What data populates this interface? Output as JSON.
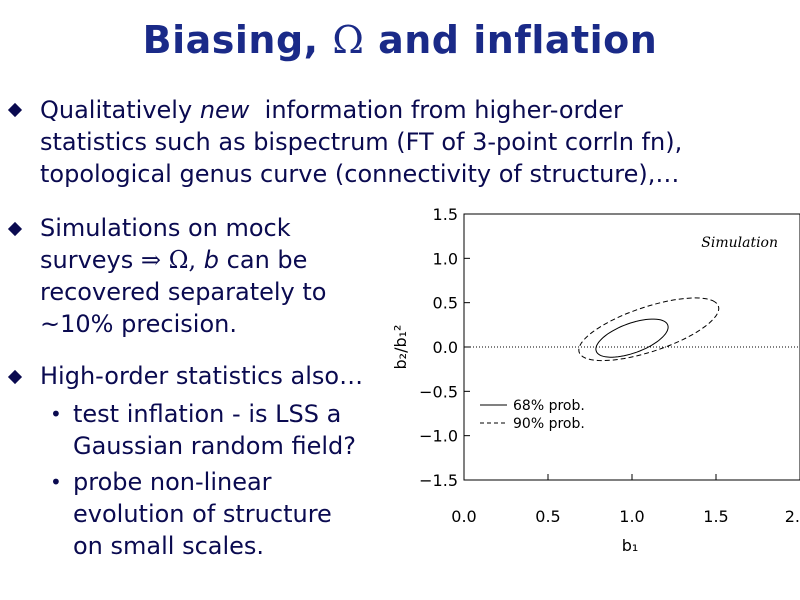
{
  "slide": {
    "title_pre": "Biasing, ",
    "title_omega": "Ω",
    "title_post": " and inflation",
    "bullet1": {
      "pre": "Qualitatively ",
      "italic": "new",
      "line1_rest": "  information from higher-order",
      "line2": "statistics such as bispectrum (FT of 3-point corrln fn),",
      "line3": "topological genus curve (connectivity of structure),…"
    },
    "bullet2": {
      "line1": "Simulations on mock",
      "line2_pre": "surveys ",
      "arrow": "⇒",
      "line2_omega": " Ω, ",
      "line2_b": "b",
      "line2_post": " can be",
      "line3": "recovered separately to",
      "line4": "~10% precision."
    },
    "bullet3": {
      "line1": "High-order statistics also…",
      "sub1_line1": "test inflation - is LSS a",
      "sub1_line2": "Gaussian random field?",
      "sub2_line1": "probe non-linear",
      "sub2_line2": "evolution of structure",
      "sub2_line3": "on small scales."
    },
    "sub_bullet_glyph": "•"
  },
  "chart_data": {
    "type": "contour",
    "annotation": "Simulation",
    "xlabel": "b₁",
    "ylabel": "b₂/b₁²",
    "xlim": [
      0.0,
      2.0
    ],
    "ylim": [
      -1.5,
      1.5
    ],
    "x_ticks": [
      "0.0",
      "0.5",
      "1.0",
      "1.5",
      "2."
    ],
    "y_ticks": [
      "1.5",
      "1.0",
      "0.5",
      "0.0",
      "−0.5",
      "−1.0",
      "−1.5"
    ],
    "reference_line_y": 0.0,
    "legend": [
      {
        "label": "68% prob.",
        "style": "solid"
      },
      {
        "label": "90% prob.",
        "style": "dashed"
      }
    ],
    "contours": [
      {
        "level": "68%",
        "center": [
          1.0,
          0.1
        ],
        "semi_major": 0.27,
        "semi_minor": 0.14,
        "angle_deg": 45
      },
      {
        "level": "90%",
        "center": [
          1.1,
          0.2
        ],
        "semi_major": 0.5,
        "semi_minor": 0.22,
        "angle_deg": 38
      }
    ]
  }
}
